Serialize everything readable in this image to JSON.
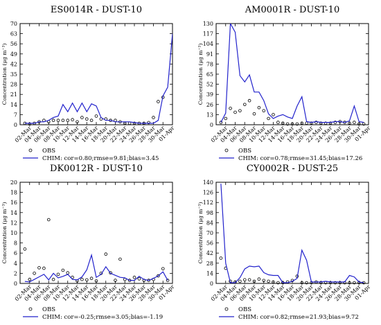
{
  "chart_data": [
    {
      "type": "line",
      "title": "ES0014R - DUST-10",
      "ylabel": "Concentration (μg m⁻³)",
      "xlabel": "",
      "ylim": [
        0,
        70
      ],
      "yticks": [
        0,
        7,
        14,
        21,
        28,
        35,
        42,
        49,
        56,
        63,
        70
      ],
      "x_labels": [
        "02-Mar",
        "04-Mar",
        "06-Mar",
        "08-Mar",
        "10-Mar",
        "12-Mar",
        "14-Mar",
        "16-Mar",
        "18-Mar",
        "20-Mar",
        "22-Mar",
        "24-Mar",
        "26-Mar",
        "28-Mar",
        "30-Mar",
        "01-Apr"
      ],
      "series": [
        {
          "name": "OBS",
          "style": "circles",
          "color": "#000000",
          "points": [
            [
              1,
              1
            ],
            [
              2,
              0.5
            ],
            [
              3,
              1
            ],
            [
              4,
              2
            ],
            [
              5,
              3
            ],
            [
              6,
              2
            ],
            [
              7,
              3
            ],
            [
              8,
              3
            ],
            [
              9,
              3
            ],
            [
              10,
              3
            ],
            [
              11,
              3.5
            ],
            [
              12,
              2
            ],
            [
              13,
              5
            ],
            [
              14,
              4
            ],
            [
              15,
              3
            ],
            [
              16,
              6
            ],
            [
              17,
              4
            ],
            [
              18,
              4
            ],
            [
              19,
              3
            ],
            [
              20,
              3
            ],
            [
              21,
              2
            ],
            [
              22,
              1
            ],
            [
              23,
              1
            ],
            [
              24,
              1
            ],
            [
              25,
              1
            ],
            [
              26,
              1
            ],
            [
              27,
              1.5
            ],
            [
              28,
              5
            ],
            [
              29,
              16
            ],
            [
              30,
              19
            ]
          ]
        },
        {
          "name": "CHIM: cor=0.80;rmse=9.81;bias=3.45",
          "style": "line",
          "color": "#2222cc",
          "points": [
            [
              1,
              1
            ],
            [
              2,
              1
            ],
            [
              3,
              1
            ],
            [
              4,
              2
            ],
            [
              5,
              2
            ],
            [
              6,
              3
            ],
            [
              7,
              5
            ],
            [
              8,
              6
            ],
            [
              9,
              14
            ],
            [
              10,
              9
            ],
            [
              11,
              15
            ],
            [
              12,
              9
            ],
            [
              13,
              15
            ],
            [
              14,
              9
            ],
            [
              15,
              14.5
            ],
            [
              16,
              13
            ],
            [
              17,
              5
            ],
            [
              18,
              3
            ],
            [
              19,
              3
            ],
            [
              20,
              2
            ],
            [
              21,
              2
            ],
            [
              22,
              2
            ],
            [
              23,
              2
            ],
            [
              24,
              1.5
            ],
            [
              25,
              1
            ],
            [
              26,
              1
            ],
            [
              27,
              1
            ],
            [
              28,
              1
            ],
            [
              29,
              3
            ],
            [
              30,
              20
            ],
            [
              31,
              26
            ],
            [
              32,
              63
            ]
          ]
        }
      ]
    },
    {
      "type": "line",
      "title": "AM0001R - DUST-10",
      "ylabel": "Concentration (μg m⁻³)",
      "xlabel": "",
      "ylim": [
        0,
        130
      ],
      "yticks": [
        0,
        13,
        26,
        39,
        52,
        65,
        78,
        91,
        104,
        117,
        130
      ],
      "x_labels": [
        "02-Mar",
        "04-Mar",
        "06-Mar",
        "08-Mar",
        "10-Mar",
        "12-Mar",
        "14-Mar",
        "16-Mar",
        "18-Mar",
        "20-Mar",
        "22-Mar",
        "24-Mar",
        "26-Mar",
        "28-Mar",
        "30-Mar",
        "01-Apr"
      ],
      "series": [
        {
          "name": "OBS",
          "style": "circles",
          "color": "#000000",
          "points": [
            [
              1,
              3
            ],
            [
              2,
              8
            ],
            [
              3,
              21
            ],
            [
              4,
              16
            ],
            [
              5,
              18
            ],
            [
              6,
              26
            ],
            [
              7,
              31
            ],
            [
              8,
              14
            ],
            [
              9,
              22
            ],
            [
              10,
              18
            ],
            [
              11,
              8
            ],
            [
              12,
              13
            ],
            [
              13,
              3
            ],
            [
              14,
              2
            ],
            [
              15,
              1
            ],
            [
              16,
              1
            ],
            [
              17,
              1
            ],
            [
              18,
              2
            ],
            [
              19,
              2
            ],
            [
              20,
              2
            ],
            [
              21,
              3
            ],
            [
              22,
              2
            ],
            [
              23,
              2
            ],
            [
              24,
              2
            ],
            [
              25,
              3
            ],
            [
              26,
              4
            ],
            [
              27,
              3
            ],
            [
              28,
              2
            ],
            [
              29,
              3
            ],
            [
              30,
              1
            ],
            [
              31,
              1
            ]
          ]
        },
        {
          "name": "CHIM: cor=0.78;rmse=31.45;bias=17.26",
          "style": "line",
          "color": "#2222cc",
          "points": [
            [
              1,
              3
            ],
            [
              2,
              15
            ],
            [
              3,
              130
            ],
            [
              4,
              119
            ],
            [
              5,
              63
            ],
            [
              6,
              55
            ],
            [
              7,
              64
            ],
            [
              8,
              42
            ],
            [
              9,
              42
            ],
            [
              10,
              31
            ],
            [
              11,
              14
            ],
            [
              12,
              8
            ],
            [
              13,
              11
            ],
            [
              14,
              13
            ],
            [
              15,
              10
            ],
            [
              16,
              8
            ],
            [
              17,
              24
            ],
            [
              18,
              36
            ],
            [
              19,
              4
            ],
            [
              20,
              3
            ],
            [
              21,
              4
            ],
            [
              22,
              3
            ],
            [
              23,
              3
            ],
            [
              24,
              3
            ],
            [
              25,
              4
            ],
            [
              26,
              4
            ],
            [
              27,
              3
            ],
            [
              28,
              5
            ],
            [
              29,
              24
            ],
            [
              30,
              4
            ],
            [
              31,
              3
            ]
          ]
        }
      ]
    },
    {
      "type": "line",
      "title": "DK0012R - DUST-10",
      "ylabel": "Concentration (μg m⁻³)",
      "xlabel": "",
      "ylim": [
        0,
        20
      ],
      "yticks": [
        0,
        2,
        4,
        6,
        8,
        10,
        12,
        14,
        16,
        18,
        20
      ],
      "x_labels": [
        "02-Mar",
        "04-Mar",
        "06-Mar",
        "08-Mar",
        "10-Mar",
        "12-Mar",
        "14-Mar",
        "16-Mar",
        "18-Mar",
        "20-Mar",
        "22-Mar",
        "24-Mar",
        "26-Mar",
        "28-Mar",
        "30-Mar",
        "01-Apr"
      ],
      "series": [
        {
          "name": "OBS",
          "style": "circles",
          "color": "#000000",
          "points": [
            [
              1,
              6.8
            ],
            [
              2,
              0.8
            ],
            [
              3,
              2
            ],
            [
              4,
              3.1
            ],
            [
              5,
              3
            ],
            [
              6,
              12.6
            ],
            [
              7,
              0.8
            ],
            [
              8,
              1.8
            ],
            [
              9,
              2.6
            ],
            [
              10,
              2.1
            ],
            [
              11,
              1.2
            ],
            [
              12,
              0.5
            ],
            [
              13,
              0.8
            ],
            [
              14,
              0.7
            ],
            [
              15,
              1
            ],
            [
              16,
              0.5
            ],
            [
              17,
              2
            ],
            [
              18,
              5.8
            ],
            [
              19,
              2.1
            ],
            [
              20,
              0.6
            ],
            [
              21,
              4.8
            ],
            [
              22,
              0.8
            ],
            [
              23,
              0.6
            ],
            [
              24,
              1.2
            ],
            [
              25,
              0.9
            ],
            [
              26,
              0.6
            ],
            [
              27,
              0.6
            ],
            [
              28,
              0.8
            ],
            [
              29,
              1.5
            ],
            [
              30,
              2.9
            ],
            [
              31,
              0.6
            ]
          ]
        },
        {
          "name": "CHIM: cor=-0.25;rmse=3.05;bias=-1.19",
          "style": "line",
          "color": "#2222cc",
          "points": [
            [
              1,
              0.4
            ],
            [
              2,
              0.3
            ],
            [
              3,
              0.8
            ],
            [
              4,
              1.3
            ],
            [
              5,
              1.8
            ],
            [
              6,
              0.7
            ],
            [
              7,
              2
            ],
            [
              8,
              1.1
            ],
            [
              9,
              1.4
            ],
            [
              10,
              1.8
            ],
            [
              11,
              0.8
            ],
            [
              12,
              0.7
            ],
            [
              13,
              1.3
            ],
            [
              14,
              2.7
            ],
            [
              15,
              5.6
            ],
            [
              16,
              1.2
            ],
            [
              17,
              1.8
            ],
            [
              18,
              3.3
            ],
            [
              19,
              2
            ],
            [
              20,
              1.6
            ],
            [
              21,
              1.2
            ],
            [
              22,
              1.1
            ],
            [
              23,
              0.6
            ],
            [
              24,
              0.6
            ],
            [
              25,
              1.4
            ],
            [
              26,
              0.8
            ],
            [
              27,
              0.6
            ],
            [
              28,
              1
            ],
            [
              29,
              1.5
            ],
            [
              30,
              2.3
            ],
            [
              31,
              0.6
            ]
          ]
        }
      ]
    },
    {
      "type": "line",
      "title": "CY0002R - DUST-25",
      "ylabel": "Concentration (μg m⁻³)",
      "xlabel": "",
      "ylim": [
        0,
        140
      ],
      "yticks": [
        0,
        14,
        28,
        42,
        56,
        70,
        84,
        98,
        112,
        126,
        140
      ],
      "x_labels": [
        "02-Mar",
        "04-Mar",
        "06-Mar",
        "08-Mar",
        "10-Mar",
        "12-Mar",
        "14-Mar",
        "16-Mar",
        "18-Mar",
        "20-Mar",
        "22-Mar",
        "24-Mar",
        "26-Mar",
        "28-Mar",
        "30-Mar",
        "01-Apr"
      ],
      "series": [
        {
          "name": "OBS",
          "style": "circles",
          "color": "#000000",
          "points": [
            [
              1,
              35
            ],
            [
              2,
              21
            ],
            [
              3,
              3
            ],
            [
              4,
              2
            ],
            [
              5,
              3
            ],
            [
              6,
              5
            ],
            [
              7,
              5
            ],
            [
              8,
              3
            ],
            [
              9,
              6
            ],
            [
              10,
              4
            ],
            [
              11,
              3
            ],
            [
              12,
              2
            ],
            [
              13,
              1
            ],
            [
              14,
              1
            ],
            [
              15,
              2
            ],
            [
              16,
              4
            ],
            [
              17,
              10
            ],
            [
              18,
              1
            ],
            [
              19,
              1
            ],
            [
              20,
              1
            ],
            [
              21,
              2
            ],
            [
              22,
              1
            ],
            [
              23,
              1
            ],
            [
              24,
              1
            ],
            [
              25,
              1
            ],
            [
              26,
              1
            ],
            [
              27,
              1
            ],
            [
              28,
              1
            ],
            [
              29,
              1
            ],
            [
              30,
              1
            ],
            [
              31,
              1
            ]
          ]
        },
        {
          "name": "CHIM: cor=0.82;rmse=21.93;bias=9.72",
          "style": "line",
          "color": "#2222cc",
          "points": [
            [
              1,
              138
            ],
            [
              2,
              28
            ],
            [
              3,
              1
            ],
            [
              4,
              1
            ],
            [
              5,
              8
            ],
            [
              6,
              20
            ],
            [
              7,
              24
            ],
            [
              8,
              23
            ],
            [
              9,
              24
            ],
            [
              10,
              15
            ],
            [
              11,
              12
            ],
            [
              12,
              11
            ],
            [
              13,
              11
            ],
            [
              14,
              1
            ],
            [
              15,
              1
            ],
            [
              16,
              3
            ],
            [
              17,
              7
            ],
            [
              18,
              46
            ],
            [
              19,
              32
            ],
            [
              20,
              2
            ],
            [
              21,
              2
            ],
            [
              22,
              2
            ],
            [
              23,
              3
            ],
            [
              24,
              2
            ],
            [
              25,
              2
            ],
            [
              26,
              2
            ],
            [
              27,
              2
            ],
            [
              28,
              11
            ],
            [
              29,
              9
            ],
            [
              30,
              2
            ],
            [
              31,
              1
            ]
          ]
        }
      ]
    }
  ]
}
